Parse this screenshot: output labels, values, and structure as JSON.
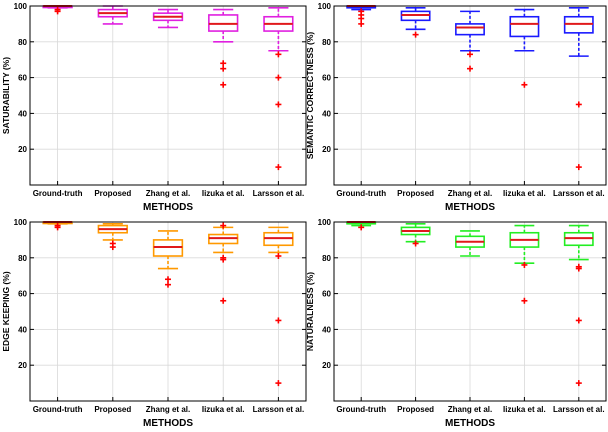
{
  "colors": {
    "median": "#e0191b",
    "outlier": "#ff0000",
    "grid": "#d9d9d9",
    "axis": "#000000"
  },
  "chart_data": [
    {
      "type": "box",
      "xlabel": "METHODS",
      "ylabel": "SATURABILITY (%)",
      "ylim": [
        0,
        100
      ],
      "yticks": [
        20,
        40,
        60,
        80,
        100
      ],
      "grid": true,
      "color": "#e020e0",
      "categories": [
        "Ground-truth",
        "Proposed",
        "Zhang et al.",
        "Iizuka et al.",
        "Larsson et al."
      ],
      "boxes": [
        {
          "whisker_low": 99,
          "q1": 100,
          "median": 100,
          "q3": 100,
          "whisker_high": 100,
          "outliers": [
            97,
            98
          ]
        },
        {
          "whisker_low": 90,
          "q1": 94,
          "median": 96,
          "q3": 98,
          "whisker_high": 100,
          "outliers": []
        },
        {
          "whisker_low": 88,
          "q1": 92,
          "median": 94,
          "q3": 96,
          "whisker_high": 98,
          "outliers": []
        },
        {
          "whisker_low": 80,
          "q1": 86,
          "median": 90,
          "q3": 95,
          "whisker_high": 98,
          "outliers": [
            68,
            65,
            56
          ]
        },
        {
          "whisker_low": 75,
          "q1": 86,
          "median": 90,
          "q3": 94,
          "whisker_high": 99,
          "outliers": [
            73,
            60,
            45,
            10
          ]
        }
      ]
    },
    {
      "type": "box",
      "xlabel": "METHODS",
      "ylabel": "SEMANTIC CORRECTNESS (%)",
      "ylim": [
        0,
        100
      ],
      "yticks": [
        20,
        40,
        60,
        80,
        100
      ],
      "grid": true,
      "color": "#1a1aff",
      "categories": [
        "Ground-truth",
        "Proposed",
        "Zhang et al.",
        "Iizuka et al.",
        "Larsson et al."
      ],
      "boxes": [
        {
          "whisker_low": 98,
          "q1": 99,
          "median": 100,
          "q3": 100,
          "whisker_high": 100,
          "outliers": [
            97,
            95,
            93,
            90
          ]
        },
        {
          "whisker_low": 87,
          "q1": 92,
          "median": 95,
          "q3": 97,
          "whisker_high": 99,
          "outliers": [
            84
          ]
        },
        {
          "whisker_low": 75,
          "q1": 84,
          "median": 88,
          "q3": 90,
          "whisker_high": 97,
          "outliers": [
            73,
            65
          ]
        },
        {
          "whisker_low": 75,
          "q1": 83,
          "median": 90,
          "q3": 94,
          "whisker_high": 98,
          "outliers": [
            56
          ]
        },
        {
          "whisker_low": 72,
          "q1": 85,
          "median": 90,
          "q3": 94,
          "whisker_high": 99,
          "outliers": [
            45,
            10
          ]
        }
      ]
    },
    {
      "type": "box",
      "xlabel": "METHODS",
      "ylabel": "EDGE KEEPING (%)",
      "ylim": [
        0,
        100
      ],
      "yticks": [
        20,
        40,
        60,
        80,
        100
      ],
      "grid": true,
      "color": "#ff9900",
      "categories": [
        "Ground-truth",
        "Proposed",
        "Zhang et al.",
        "Iizuka et al.",
        "Larsson et al."
      ],
      "boxes": [
        {
          "whisker_low": 99,
          "q1": 100,
          "median": 100,
          "q3": 100,
          "whisker_high": 100,
          "outliers": [
            97,
            98
          ]
        },
        {
          "whisker_low": 90,
          "q1": 94,
          "median": 96,
          "q3": 98,
          "whisker_high": 99,
          "outliers": [
            88,
            86
          ]
        },
        {
          "whisker_low": 74,
          "q1": 81,
          "median": 86,
          "q3": 90,
          "whisker_high": 95,
          "outliers": [
            68,
            65
          ]
        },
        {
          "whisker_low": 83,
          "q1": 88,
          "median": 91,
          "q3": 93,
          "whisker_high": 97,
          "outliers": [
            98,
            80,
            79,
            56
          ]
        },
        {
          "whisker_low": 83,
          "q1": 87,
          "median": 91,
          "q3": 94,
          "whisker_high": 97,
          "outliers": [
            81,
            45,
            10
          ]
        }
      ]
    },
    {
      "type": "box",
      "xlabel": "METHODS",
      "ylabel": "NATURALNESS (%)",
      "ylim": [
        0,
        100
      ],
      "yticks": [
        20,
        40,
        60,
        80,
        100
      ],
      "grid": true,
      "color": "#22ee22",
      "categories": [
        "Ground-truth",
        "Proposed",
        "Zhang et al.",
        "Iizuka et al.",
        "Larsson et al."
      ],
      "boxes": [
        {
          "whisker_low": 98,
          "q1": 99,
          "median": 100,
          "q3": 100,
          "whisker_high": 100,
          "outliers": [
            97
          ]
        },
        {
          "whisker_low": 89,
          "q1": 93,
          "median": 95,
          "q3": 97,
          "whisker_high": 99,
          "outliers": [
            88
          ]
        },
        {
          "whisker_low": 81,
          "q1": 86,
          "median": 89,
          "q3": 92,
          "whisker_high": 95,
          "outliers": []
        },
        {
          "whisker_low": 77,
          "q1": 86,
          "median": 90,
          "q3": 94,
          "whisker_high": 98,
          "outliers": [
            76,
            56
          ]
        },
        {
          "whisker_low": 79,
          "q1": 87,
          "median": 91,
          "q3": 94,
          "whisker_high": 98,
          "outliers": [
            75,
            74,
            45,
            10
          ]
        }
      ]
    }
  ]
}
